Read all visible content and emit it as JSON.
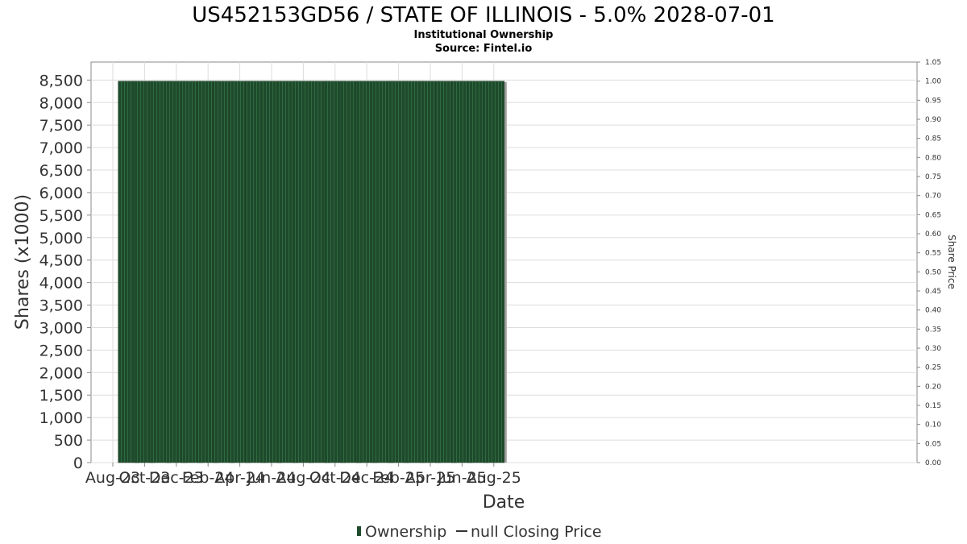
{
  "chart_data": {
    "type": "bar",
    "title": "US452153GD56 / STATE OF ILLINOIS - 5.0% 2028-07-01",
    "subtitle_1": "Institutional Ownership",
    "subtitle_2": "Source: Fintel.io",
    "xlabel": "Date",
    "ylabel": "Shares (x1000)",
    "y2label": "Share Price",
    "ylim": [
      0,
      8900
    ],
    "y2lim": [
      0,
      1.05
    ],
    "yticks": [
      "0",
      "500",
      "1,000",
      "1,500",
      "2,000",
      "2,500",
      "3,000",
      "3,500",
      "4,000",
      "4,500",
      "5,000",
      "5,500",
      "6,000",
      "6,500",
      "7,000",
      "7,500",
      "8,000",
      "8,500"
    ],
    "y2ticks": [
      "0.00",
      "0.05",
      "0.10",
      "0.15",
      "0.20",
      "0.25",
      "0.30",
      "0.35",
      "0.40",
      "0.45",
      "0.50",
      "0.55",
      "0.60",
      "0.65",
      "0.70",
      "0.75",
      "0.80",
      "0.85",
      "0.90",
      "0.95",
      "1.00",
      "1.05"
    ],
    "xticks": [
      "Aug-23",
      "Oct-23",
      "Dec-23",
      "Feb-24",
      "Apr-24",
      "Jun-24",
      "Aug-24",
      "Oct-24",
      "Dec-24",
      "Feb-25",
      "Apr-25",
      "Jun-25",
      "Aug-25"
    ],
    "x_dates": [
      "2023-09",
      "2023-10",
      "2023-11",
      "2023-12",
      "2024-01",
      "2024-02",
      "2024-03",
      "2024-04",
      "2024-05",
      "2024-06",
      "2024-07",
      "2024-08",
      "2024-09",
      "2024-10",
      "2024-11",
      "2024-12",
      "2025-01",
      "2025-02",
      "2025-03",
      "2025-04",
      "2025-05",
      "2025-06",
      "2025-07",
      "2025-08"
    ],
    "series": [
      {
        "name": "Ownership",
        "values": [
          8475,
          8475,
          8475,
          8475,
          8475,
          8475,
          8475,
          8475,
          8475,
          8475,
          8475,
          8475,
          8475,
          8475,
          8475,
          8475,
          8475,
          8475,
          8475,
          8475,
          8475,
          8475,
          8475,
          8475
        ]
      }
    ],
    "legend": {
      "position": "bottom",
      "items": [
        "Ownership",
        "null Closing Price"
      ]
    },
    "grid": true,
    "colors": {
      "bar": "#1f4a2c",
      "bar_stripe": "#2f6b3f",
      "bar_shadow": "#a0a0a0",
      "grid": "#dddddd",
      "axis": "#888888"
    }
  }
}
